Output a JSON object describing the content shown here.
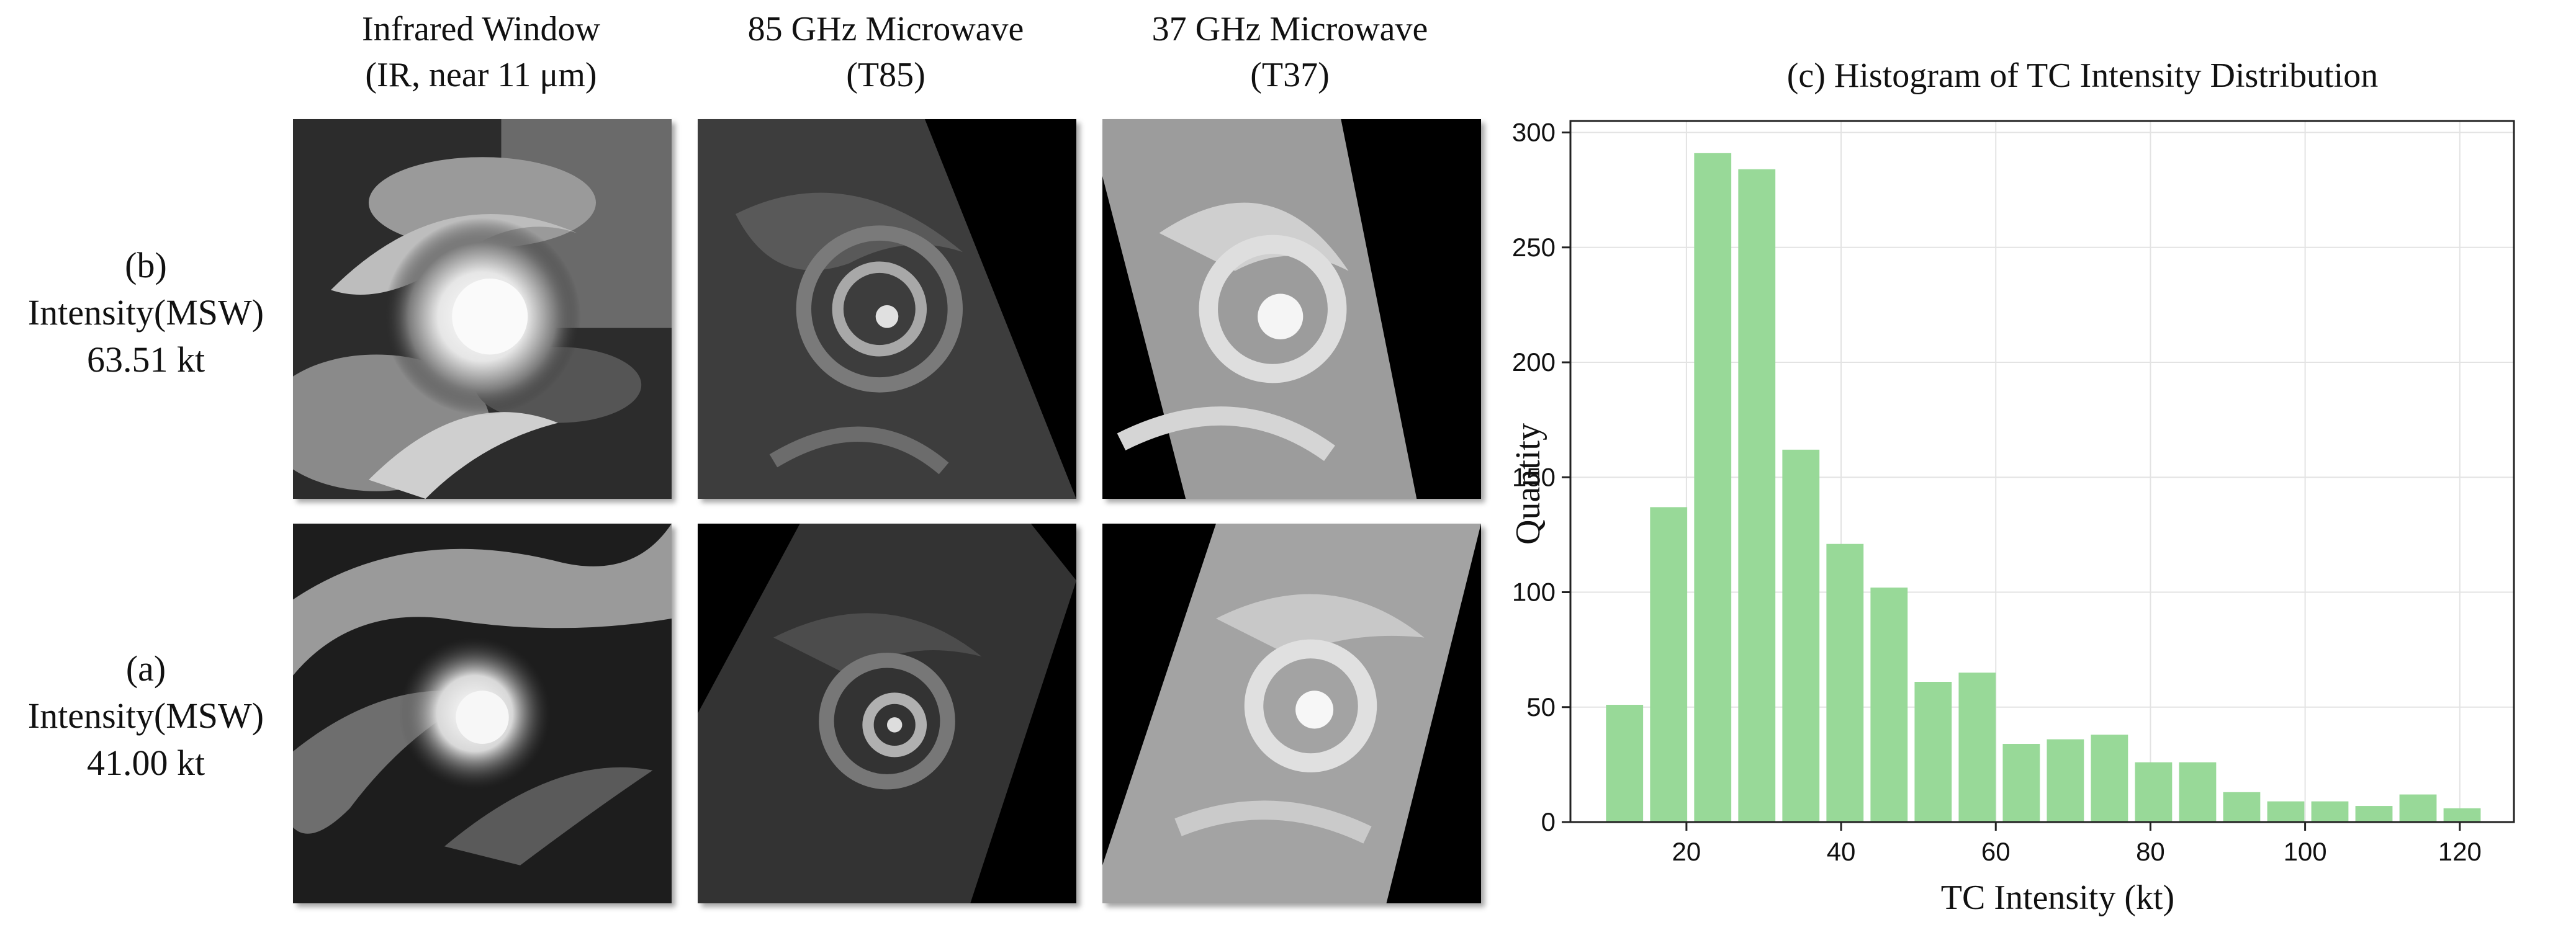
{
  "columns": [
    {
      "line1": "Infrared Window",
      "line2": "(IR, near 11 μm)"
    },
    {
      "line1": "85 GHz Microwave",
      "line2": "(T85)"
    },
    {
      "line1": "37 GHz Microwave",
      "line2": "(T37)"
    }
  ],
  "rows": [
    {
      "id": "(b)",
      "label": "Intensity(MSW)",
      "value": "63.51 kt"
    },
    {
      "id": "(a)",
      "label": "Intensity(MSW)",
      "value": "41.00 kt"
    }
  ],
  "colors": {
    "bar": "#98d998",
    "grid": "#e3e3e3",
    "axis": "#222222"
  },
  "chart_data": {
    "type": "bar",
    "title": "(c) Histogram of TC Intensity Distribution",
    "xlabel": "TC Intensity (kt)",
    "ylabel": "Quantity",
    "xlim": [
      5,
      127
    ],
    "ylim": [
      0,
      305
    ],
    "xticks": [
      20,
      40,
      60,
      80,
      100,
      120
    ],
    "yticks": [
      0,
      50,
      100,
      150,
      200,
      250,
      300
    ],
    "bin_width": 5.7,
    "bin_centers": [
      12.0,
      17.7,
      23.4,
      29.1,
      34.8,
      40.5,
      46.2,
      51.9,
      57.6,
      63.3,
      69.0,
      74.7,
      80.4,
      86.1,
      91.8,
      97.5,
      103.2,
      108.9,
      114.6,
      120.3
    ],
    "values": [
      51,
      137,
      291,
      284,
      162,
      121,
      102,
      61,
      65,
      34,
      36,
      38,
      26,
      26,
      13,
      9,
      9,
      7,
      12,
      6
    ],
    "grid": true
  }
}
